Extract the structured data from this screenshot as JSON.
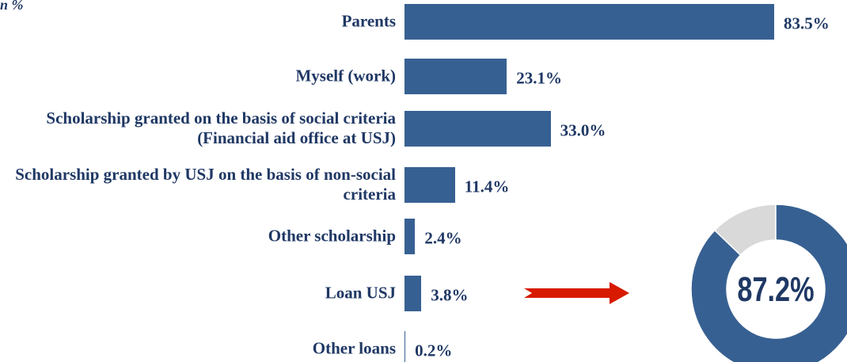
{
  "chart_data": [
    {
      "type": "bar",
      "subtitle": "n %",
      "categories": [
        "Parents",
        "Myself (work)",
        "Scholarship granted on the  basis of social criteria (Financial aid office at USJ)",
        "Scholarship granted by USJ on the basis of non-social criteria",
        "Other scholarship",
        "Loan USJ",
        "Other loans"
      ],
      "values": [
        83.5,
        23.1,
        33.0,
        11.4,
        2.4,
        3.8,
        0.2
      ],
      "value_labels": [
        "83.5%",
        "23.1%",
        "33.0%",
        "11.4%",
        "2.4%",
        "3.8%",
        "0.2%"
      ],
      "color": "#376092",
      "orientation": "horizontal"
    },
    {
      "type": "donut",
      "values": [
        87.2
      ],
      "value_labels": [
        "87.2%"
      ],
      "color": "#376092",
      "rest_color": "#d9d9d9"
    }
  ]
}
